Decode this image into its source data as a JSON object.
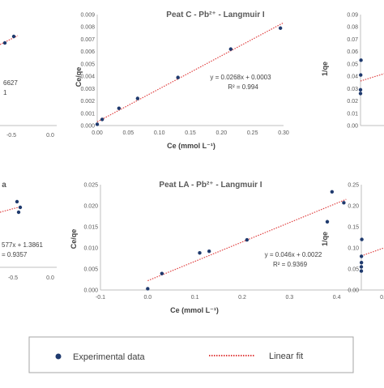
{
  "chart_data": [
    {
      "id": "top-left-partial",
      "type": "scatter",
      "title": "",
      "xlim": [
        -0.5,
        0.0
      ],
      "x_ticks": [
        "-0.5",
        "0.0"
      ],
      "points": [
        {
          "x": -0.47,
          "y": 0.85
        },
        {
          "x": -0.35,
          "y": 0.77
        }
      ],
      "equation_fragments": [
        "6627",
        "1"
      ]
    },
    {
      "id": "peat-c",
      "type": "scatter",
      "title": "Peat C - Pb²⁺ - Langmuir I",
      "xlabel": "Ce (mmol L⁻¹)",
      "ylabel": "Ce/qe",
      "xlim": [
        0,
        0.3
      ],
      "ylim": [
        0,
        0.009
      ],
      "x_ticks": [
        "0.00",
        "0.05",
        "0.10",
        "0.15",
        "0.20",
        "0.25",
        "0.30"
      ],
      "y_ticks": [
        "0.000",
        "0.001",
        "0.002",
        "0.003",
        "0.004",
        "0.005",
        "0.006",
        "0.007",
        "0.008",
        "0.009"
      ],
      "points": [
        {
          "x": 0.0,
          "y": 0.0001
        },
        {
          "x": 0.008,
          "y": 0.0005
        },
        {
          "x": 0.035,
          "y": 0.0014
        },
        {
          "x": 0.065,
          "y": 0.0022
        },
        {
          "x": 0.13,
          "y": 0.0039
        },
        {
          "x": 0.215,
          "y": 0.0062
        },
        {
          "x": 0.295,
          "y": 0.0079
        }
      ],
      "fit": {
        "slope": 0.0268,
        "intercept": 0.0003
      },
      "equation": "y = 0.0268x + 0.0003",
      "r2": "R² = 0.994"
    },
    {
      "id": "top-right-partial",
      "type": "scatter",
      "title": "",
      "ylabel": "1/qe",
      "ylim": [
        0,
        0.09
      ],
      "y_ticks": [
        "0.00",
        "0.01",
        "0.02",
        "0.03",
        "0.04",
        "0.05",
        "0.06",
        "0.07",
        "0.08",
        "0.09"
      ],
      "points": [
        {
          "x": 0.0,
          "y": 0.026
        },
        {
          "x": 0.0,
          "y": 0.029
        },
        {
          "x": 0.008,
          "y": 0.041
        },
        {
          "x": 0.02,
          "y": 0.053
        }
      ]
    },
    {
      "id": "bottom-left-partial",
      "type": "scatter",
      "title": "a",
      "xlim": [
        -0.5,
        0.0
      ],
      "x_ticks": [
        "-0.5",
        "0.0"
      ],
      "points": [
        {
          "x": -0.42,
          "y": 0.8
        },
        {
          "x": -0.38,
          "y": 0.72
        },
        {
          "x": -0.4,
          "y": 0.68
        }
      ],
      "equation_fragments": [
        "577x + 1.3861",
        "= 0.9357"
      ]
    },
    {
      "id": "peat-la",
      "type": "scatter",
      "title": "Peat LA - Pb²⁺ - Langmuir I",
      "xlabel": "Ce (mmol L⁻¹)",
      "ylabel": "Ce/qe",
      "xlim": [
        -0.1,
        0.5
      ],
      "ylim": [
        0,
        0.025
      ],
      "x_ticks": [
        "-0.1",
        "0.0",
        "0.1",
        "0.2",
        "0.3",
        "0.4",
        "0.5"
      ],
      "y_ticks": [
        "0.000",
        "0.005",
        "0.010",
        "0.015",
        "0.020",
        "0.025"
      ],
      "points": [
        {
          "x": 0.0,
          "y": 0.0003
        },
        {
          "x": 0.03,
          "y": 0.0039
        },
        {
          "x": 0.11,
          "y": 0.0088
        },
        {
          "x": 0.13,
          "y": 0.0092
        },
        {
          "x": 0.21,
          "y": 0.0119
        },
        {
          "x": 0.38,
          "y": 0.0162
        },
        {
          "x": 0.39,
          "y": 0.0233
        },
        {
          "x": 0.415,
          "y": 0.0207
        }
      ],
      "fit": {
        "slope": 0.046,
        "intercept": 0.0022
      },
      "equation": "y = 0.046x + 0.0022",
      "r2": "R² = 0.9369"
    },
    {
      "id": "bottom-right-partial",
      "type": "scatter",
      "title": "",
      "ylabel": "1/qe",
      "ylim": [
        0,
        0.25
      ],
      "y_ticks": [
        "0.00",
        "0.05",
        "0.10",
        "0.15",
        "0.20",
        "0.25"
      ],
      "points": [
        {
          "x": 0.0,
          "y": 0.045
        },
        {
          "x": 0.0,
          "y": 0.055
        },
        {
          "x": 0.005,
          "y": 0.065
        },
        {
          "x": 0.005,
          "y": 0.08
        },
        {
          "x": 0.02,
          "y": 0.12
        }
      ]
    }
  ],
  "legend": {
    "marker_label": "Experimental data",
    "line_label": "Linear fit"
  },
  "colors": {
    "points": "#1f3a6e",
    "fit": "#e04040",
    "axis": "#bfbfbf"
  }
}
